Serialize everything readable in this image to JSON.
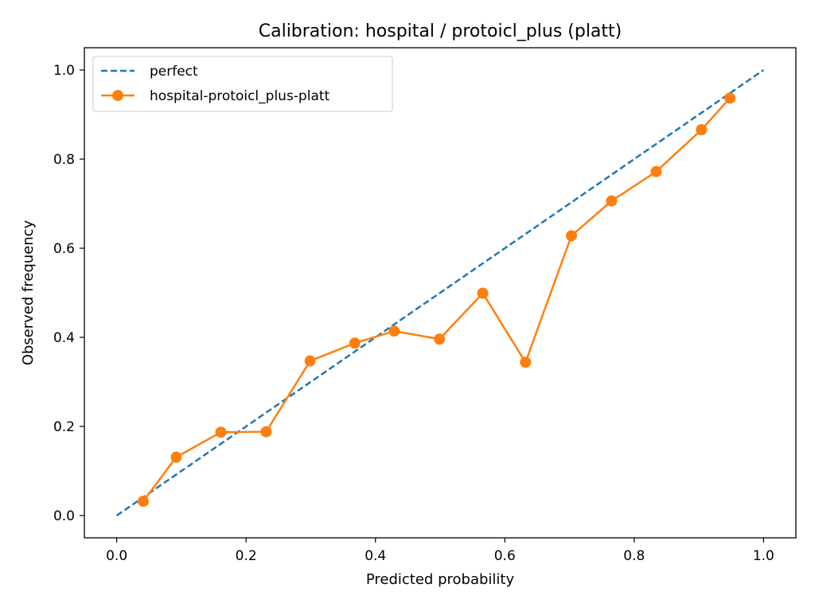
{
  "chart_data": {
    "type": "line",
    "title": "Calibration: hospital / protoicl_plus (platt)",
    "xlabel": "Predicted probability",
    "ylabel": "Observed frequency",
    "xlim": [
      -0.05,
      1.05
    ],
    "ylim": [
      -0.05,
      1.05
    ],
    "xticks": [
      0.0,
      0.2,
      0.4,
      0.6,
      0.8,
      1.0
    ],
    "yticks": [
      0.0,
      0.2,
      0.4,
      0.6,
      0.8,
      1.0
    ],
    "tick_format_decimals": 1,
    "grid": false,
    "legend": "top-left",
    "series": [
      {
        "name": "perfect",
        "style": "dashed",
        "color": "#1f77b4",
        "x": [
          0.0,
          1.0
        ],
        "y": [
          0.0,
          1.0
        ]
      },
      {
        "name": "hospital-protoicl_plus-platt",
        "style": "solid",
        "marker": "circle",
        "color": "#ff7f0e",
        "x": [
          0.041,
          0.092,
          0.161,
          0.231,
          0.299,
          0.368,
          0.429,
          0.499,
          0.566,
          0.632,
          0.703,
          0.765,
          0.834,
          0.904,
          0.948
        ],
        "y": [
          0.032,
          0.131,
          0.187,
          0.188,
          0.347,
          0.387,
          0.414,
          0.396,
          0.499,
          0.344,
          0.628,
          0.706,
          0.772,
          0.866,
          0.937
        ]
      }
    ]
  }
}
